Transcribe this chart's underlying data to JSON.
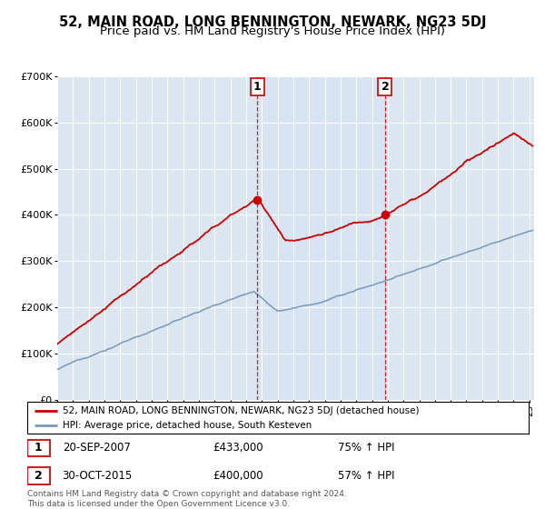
{
  "title": "52, MAIN ROAD, LONG BENNINGTON, NEWARK, NG23 5DJ",
  "subtitle": "Price paid vs. HM Land Registry's House Price Index (HPI)",
  "legend_line1": "52, MAIN ROAD, LONG BENNINGTON, NEWARK, NG23 5DJ (detached house)",
  "legend_line2": "HPI: Average price, detached house, South Kesteven",
  "footer": "Contains HM Land Registry data © Crown copyright and database right 2024.\nThis data is licensed under the Open Government Licence v3.0.",
  "sale1_date": "20-SEP-2007",
  "sale1_price": "£433,000",
  "sale1_pct": "75% ↑ HPI",
  "sale2_date": "30-OCT-2015",
  "sale2_price": "£400,000",
  "sale2_pct": "57% ↑ HPI",
  "sale1_x": 2007.72,
  "sale1_y": 433000,
  "sale2_x": 2015.83,
  "sale2_y": 400000,
  "red_color": "#cc0000",
  "blue_color": "#7799bb",
  "shade_color": "#d6e4f5",
  "bg_color": "#dce6f1",
  "vline_color": "#cc0000",
  "ylim": [
    0,
    700000
  ],
  "xlim_start": 1995,
  "xlim_end": 2025.3,
  "title_fontsize": 10.5,
  "subtitle_fontsize": 9.5
}
